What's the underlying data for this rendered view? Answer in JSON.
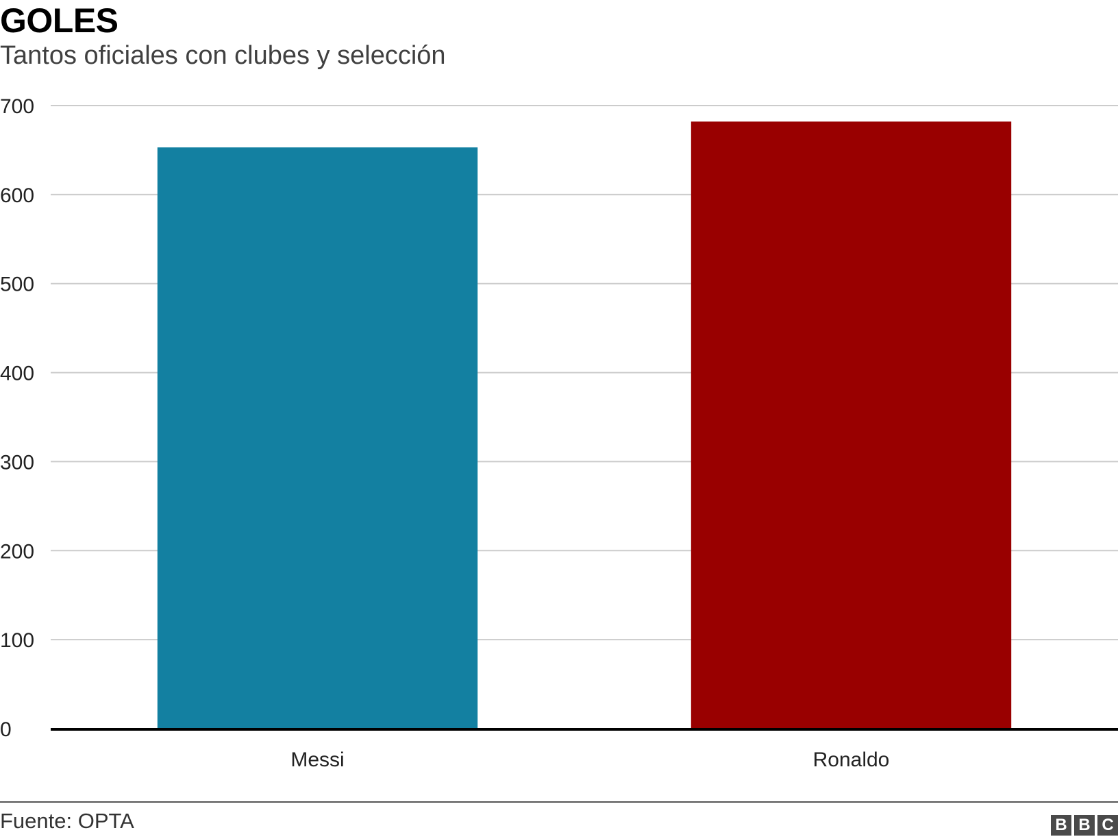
{
  "header": {
    "title": "GOLES",
    "subtitle": "Tantos oficiales con clubes y selección"
  },
  "footer": {
    "source": "Fuente: OPTA",
    "logo": [
      "B",
      "B",
      "C"
    ]
  },
  "chart_data": {
    "type": "bar",
    "title": "GOLES",
    "subtitle": "Tantos oficiales con clubes y selección",
    "categories": [
      "Messi",
      "Ronaldo"
    ],
    "values": [
      653,
      682
    ],
    "colors": [
      "#1380a1",
      "#990000"
    ],
    "ylim": [
      0,
      700
    ],
    "yticks": [
      0,
      100,
      200,
      300,
      400,
      500,
      600,
      700
    ],
    "grid": true,
    "legend": "none"
  }
}
